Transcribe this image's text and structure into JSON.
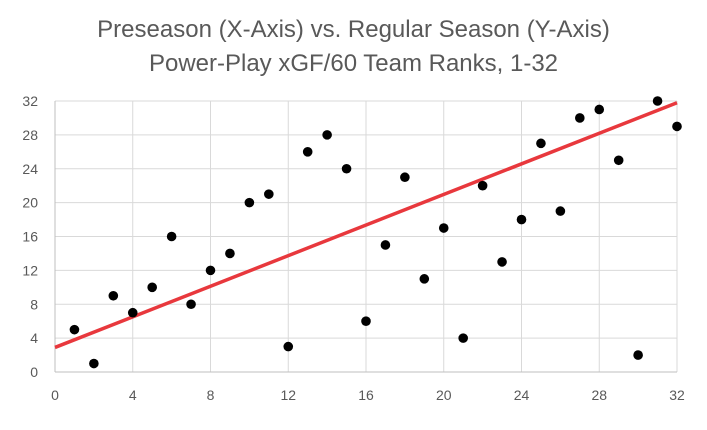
{
  "chart_data": {
    "type": "scatter",
    "title_line_1": "Preseason (X-Axis) vs. Regular Season (Y-Axis)",
    "title_line_2": "Power-Play xGF/60 Team Ranks, 1-32",
    "xlim": [
      0,
      32
    ],
    "ylim": [
      0,
      32
    ],
    "x_ticks": [
      0,
      4,
      8,
      12,
      16,
      20,
      24,
      28,
      32
    ],
    "y_ticks": [
      0,
      4,
      8,
      12,
      16,
      20,
      24,
      28,
      32
    ],
    "grid": true,
    "points": [
      {
        "x": 1,
        "y": 5
      },
      {
        "x": 2,
        "y": 1
      },
      {
        "x": 3,
        "y": 9
      },
      {
        "x": 4,
        "y": 7
      },
      {
        "x": 5,
        "y": 10
      },
      {
        "x": 6,
        "y": 16
      },
      {
        "x": 7,
        "y": 8
      },
      {
        "x": 8,
        "y": 12
      },
      {
        "x": 9,
        "y": 14
      },
      {
        "x": 10,
        "y": 20
      },
      {
        "x": 11,
        "y": 21
      },
      {
        "x": 12,
        "y": 3
      },
      {
        "x": 13,
        "y": 26
      },
      {
        "x": 14,
        "y": 28
      },
      {
        "x": 15,
        "y": 24
      },
      {
        "x": 16,
        "y": 6
      },
      {
        "x": 17,
        "y": 15
      },
      {
        "x": 18,
        "y": 23
      },
      {
        "x": 19,
        "y": 11
      },
      {
        "x": 20,
        "y": 17
      },
      {
        "x": 21,
        "y": 4
      },
      {
        "x": 22,
        "y": 22
      },
      {
        "x": 23,
        "y": 13
      },
      {
        "x": 24,
        "y": 18
      },
      {
        "x": 25,
        "y": 27
      },
      {
        "x": 26,
        "y": 19
      },
      {
        "x": 27,
        "y": 30
      },
      {
        "x": 28,
        "y": 31
      },
      {
        "x": 29,
        "y": 25
      },
      {
        "x": 30,
        "y": 2
      },
      {
        "x": 31,
        "y": 32
      },
      {
        "x": 32,
        "y": 29
      }
    ],
    "trendline": {
      "x": [
        0,
        32
      ],
      "y": [
        2.9,
        31.8
      ]
    },
    "colors": {
      "points": "#000000",
      "trendline": "#e8383d",
      "grid": "#d9d9d9",
      "axis": "#bfbfbf",
      "text": "#595959"
    }
  }
}
